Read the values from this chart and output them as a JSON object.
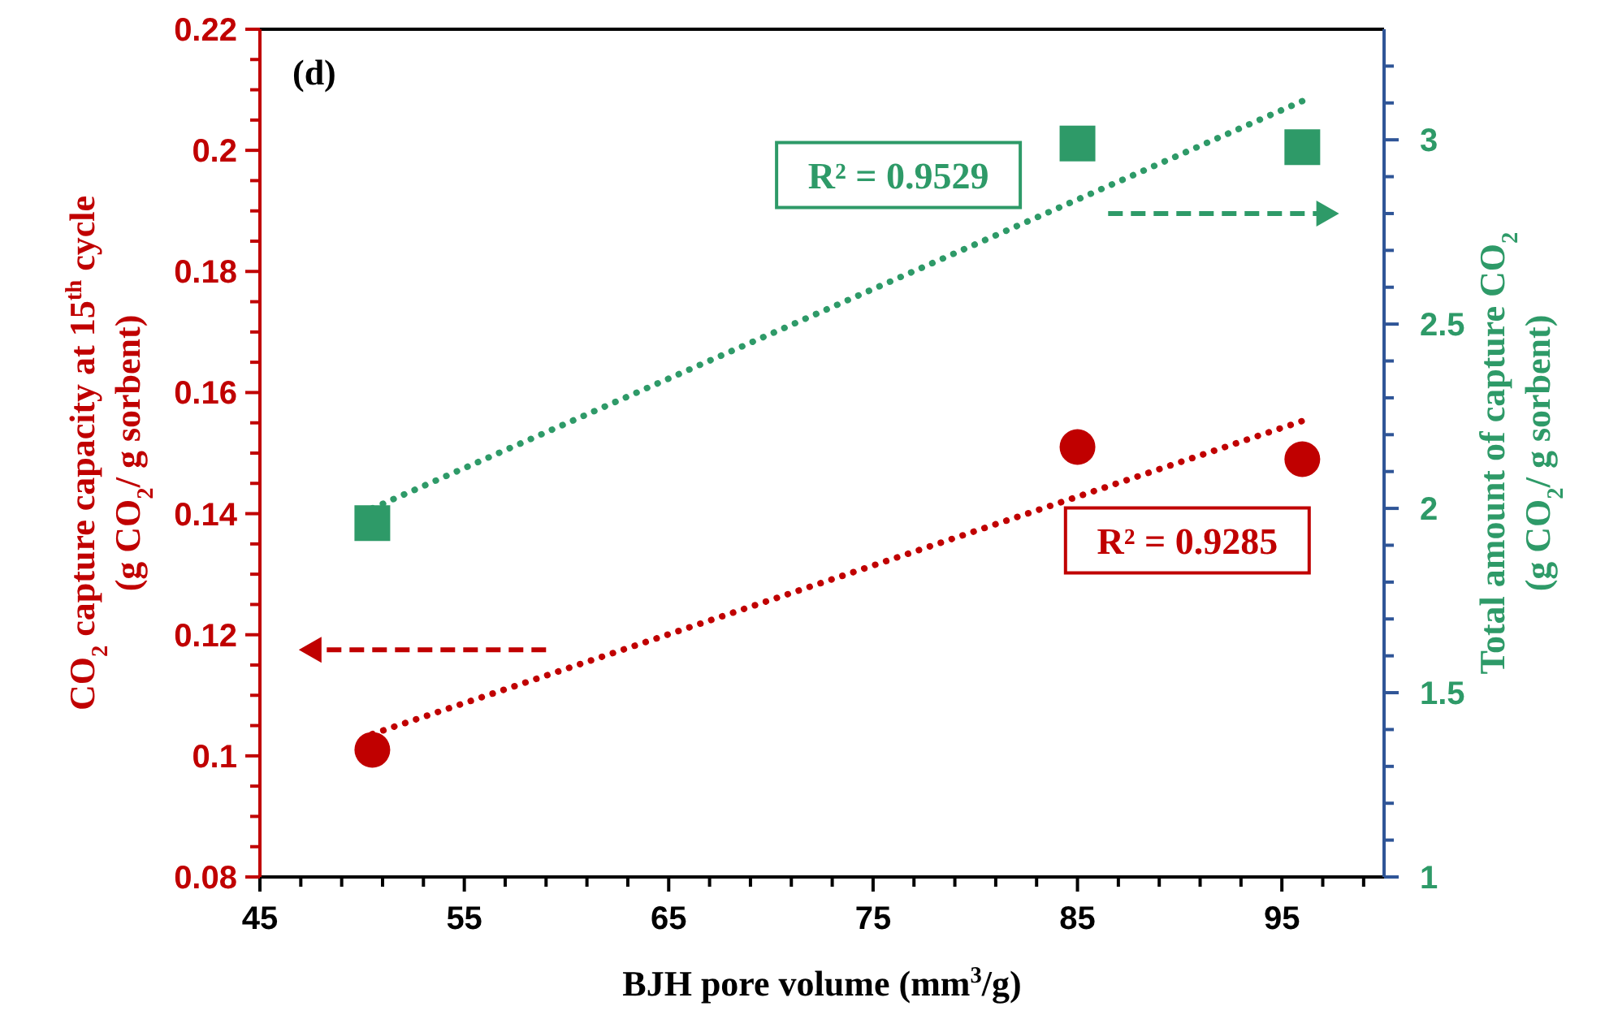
{
  "chart_data": {
    "type": "scatter",
    "xlabel": "BJH pore volume (mm$^{3}$/g)",
    "ylabel": "CO$_{2}$ capture capacity at 15$^{th}$ cycle\n(g CO$_{2}$/ g sorbent)",
    "y2label": "Total amount of capture CO$_{2}$\n(g CO$_{2}$/ g sorbent)",
    "annotations": [
      "(d)",
      "R² = 0.9529",
      "R² = 0.9285"
    ],
    "series": [
      {
        "color": "#c00000",
        "marker": "circle",
        "x": [
          50.5,
          85,
          96
        ],
        "values": [
          0.101,
          0.151,
          0.149
        ]
      },
      {
        "color": "#2e9a68",
        "marker": "square",
        "axis": "y2",
        "x": [
          50.5,
          85,
          96
        ],
        "values": [
          1.96,
          2.99,
          2.98
        ]
      },
      {
        "type": "line",
        "color": "#c00000",
        "line_style": "dotted",
        "marker": "none",
        "x": [
          50.5,
          96
        ],
        "values": [
          0.1036,
          0.1553
        ]
      },
      {
        "type": "line",
        "color": "#2e9a68",
        "line_style": "dotted",
        "marker": "none",
        "axis": "y2",
        "x": [
          50.5,
          96
        ],
        "values": [
          2.0,
          3.105
        ]
      }
    ],
    "xlim": [
      45,
      100
    ],
    "xticks": [
      45,
      {
        "value": 47,
        "label": null
      },
      {
        "value": 49,
        "label": null
      },
      {
        "value": 51,
        "label": null
      },
      {
        "value": 53,
        "label": null
      },
      55,
      {
        "value": 57,
        "label": null
      },
      {
        "value": 59,
        "label": null
      },
      {
        "value": 61,
        "label": null
      },
      {
        "value": 63,
        "label": null
      },
      65,
      {
        "value": 67,
        "label": null
      },
      {
        "value": 69,
        "label": null
      },
      {
        "value": 71,
        "label": null
      },
      {
        "value": 73,
        "label": null
      },
      75,
      {
        "value": 77,
        "label": null
      },
      {
        "value": 79,
        "label": null
      },
      {
        "value": 81,
        "label": null
      },
      {
        "value": 83,
        "label": null
      },
      85,
      {
        "value": 87,
        "label": null
      },
      {
        "value": 89,
        "label": null
      },
      {
        "value": 91,
        "label": null
      },
      {
        "value": 93,
        "label": null
      },
      95,
      {
        "value": 97,
        "label": null
      },
      {
        "value": 99,
        "label": null
      }
    ],
    "ylim": [
      0.08,
      0.22
    ],
    "yticks": [
      0.08,
      {
        "value": 0.085,
        "label": null
      },
      {
        "value": 0.09,
        "label": null
      },
      {
        "value": 0.095,
        "label": null
      },
      0.1,
      {
        "value": 0.105,
        "label": null
      },
      {
        "value": 0.11,
        "label": null
      },
      {
        "value": 0.115,
        "label": null
      },
      0.12,
      {
        "value": 0.125,
        "label": null
      },
      {
        "value": 0.13,
        "label": null
      },
      {
        "value": 0.135,
        "label": null
      },
      0.14,
      {
        "value": 0.145,
        "label": null
      },
      {
        "value": 0.15,
        "label": null
      },
      {
        "value": 0.155,
        "label": null
      },
      0.16,
      {
        "value": 0.165,
        "label": null
      },
      {
        "value": 0.17,
        "label": null
      },
      {
        "value": 0.175,
        "label": null
      },
      0.18,
      {
        "value": 0.185,
        "label": null
      },
      {
        "value": 0.19,
        "label": null
      },
      {
        "value": 0.195,
        "label": null
      },
      0.2,
      {
        "value": 0.205,
        "label": null
      },
      {
        "value": 0.21,
        "label": null
      },
      {
        "value": 0.215,
        "label": null
      },
      0.22
    ],
    "y2lim": [
      1,
      3.3
    ],
    "y2ticks": [
      1,
      {
        "value": 1.1,
        "label": null
      },
      {
        "value": 1.2,
        "label": null
      },
      {
        "value": 1.3,
        "label": null
      },
      {
        "value": 1.4,
        "label": null
      },
      1.5,
      {
        "value": 1.6,
        "label": null
      },
      {
        "value": 1.7,
        "label": null
      },
      {
        "value": 1.8,
        "label": null
      },
      {
        "value": 1.9,
        "label": null
      },
      2,
      {
        "value": 2.1,
        "label": null
      },
      {
        "value": 2.2,
        "label": null
      },
      {
        "value": 2.3,
        "label": null
      },
      {
        "value": 2.4,
        "label": null
      },
      2.5,
      {
        "value": 2.6,
        "label": null
      },
      {
        "value": 2.7,
        "label": null
      },
      {
        "value": 2.8,
        "label": null
      },
      {
        "value": 2.9,
        "label": null
      },
      3,
      {
        "value": 3.1,
        "label": null
      },
      {
        "value": 3.2,
        "label": null
      }
    ],
    "grid": false
  }
}
